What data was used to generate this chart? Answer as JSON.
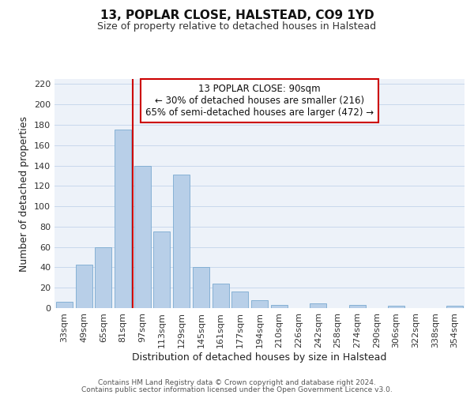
{
  "title": "13, POPLAR CLOSE, HALSTEAD, CO9 1YD",
  "subtitle": "Size of property relative to detached houses in Halstead",
  "xlabel": "Distribution of detached houses by size in Halstead",
  "ylabel": "Number of detached properties",
  "categories": [
    "33sqm",
    "49sqm",
    "65sqm",
    "81sqm",
    "97sqm",
    "113sqm",
    "129sqm",
    "145sqm",
    "161sqm",
    "177sqm",
    "194sqm",
    "210sqm",
    "226sqm",
    "242sqm",
    "258sqm",
    "274sqm",
    "290sqm",
    "306sqm",
    "322sqm",
    "338sqm",
    "354sqm"
  ],
  "values": [
    6,
    43,
    60,
    175,
    140,
    75,
    131,
    40,
    24,
    16,
    8,
    3,
    0,
    5,
    0,
    3,
    0,
    2,
    0,
    0,
    2
  ],
  "bar_color": "#b8cfe8",
  "bar_edge_color": "#7aaad0",
  "grid_color": "#c8d8ec",
  "vline_x_index": 3,
  "vline_color": "#cc0000",
  "annotation_title": "13 POPLAR CLOSE: 90sqm",
  "annotation_line1": "← 30% of detached houses are smaller (216)",
  "annotation_line2": "65% of semi-detached houses are larger (472) →",
  "annotation_box_color": "#ffffff",
  "annotation_box_edge": "#cc0000",
  "ylim": [
    0,
    225
  ],
  "yticks": [
    0,
    20,
    40,
    60,
    80,
    100,
    120,
    140,
    160,
    180,
    200,
    220
  ],
  "footer1": "Contains HM Land Registry data © Crown copyright and database right 2024.",
  "footer2": "Contains public sector information licensed under the Open Government Licence v3.0.",
  "background_color": "#ffffff",
  "plot_bg_color": "#edf2f9",
  "title_fontsize": 11,
  "subtitle_fontsize": 9,
  "tick_fontsize": 8,
  "label_fontsize": 9,
  "footer_fontsize": 6.5
}
